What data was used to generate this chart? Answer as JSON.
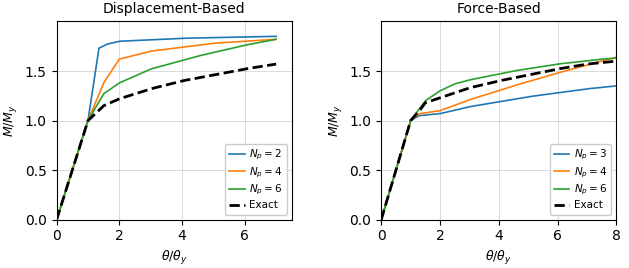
{
  "title_left": "Displacement-Based",
  "title_right": "Force-Based",
  "xlabel": "$\\theta/\\theta_y$",
  "ylabel": "$M/M_y$",
  "xlim_left": [
    0,
    7.5
  ],
  "xlim_right": [
    0,
    8.0
  ],
  "ylim": [
    0.0,
    2.0
  ],
  "yticks": [
    0.0,
    0.5,
    1.0,
    1.5
  ],
  "xticks_left": [
    0,
    2,
    4,
    6
  ],
  "xticks_right": [
    0,
    2,
    4,
    6,
    8
  ],
  "color_blue": "#1f77b4",
  "color_orange": "#ff7f0e",
  "color_green": "#2ca02c",
  "color_black": "#000000",
  "db_np2_pts": [
    [
      0,
      0
    ],
    [
      1.0,
      1.0
    ],
    [
      1.35,
      1.73
    ],
    [
      1.6,
      1.77
    ],
    [
      2.0,
      1.8
    ],
    [
      4.0,
      1.83
    ],
    [
      7.0,
      1.85
    ]
  ],
  "db_np4_pts": [
    [
      0,
      0
    ],
    [
      1.0,
      1.0
    ],
    [
      1.5,
      1.38
    ],
    [
      2.0,
      1.62
    ],
    [
      3.0,
      1.7
    ],
    [
      5.0,
      1.78
    ],
    [
      6.5,
      1.81
    ],
    [
      7.0,
      1.82
    ]
  ],
  "db_np6_pts": [
    [
      0,
      0
    ],
    [
      1.0,
      1.0
    ],
    [
      1.5,
      1.27
    ],
    [
      2.0,
      1.38
    ],
    [
      3.0,
      1.52
    ],
    [
      4.5,
      1.65
    ],
    [
      6.0,
      1.76
    ],
    [
      7.0,
      1.82
    ]
  ],
  "exact_db_pts": [
    [
      0,
      0
    ],
    [
      1.0,
      1.0
    ],
    [
      1.5,
      1.15
    ],
    [
      2.0,
      1.22
    ],
    [
      3.0,
      1.32
    ],
    [
      4.0,
      1.4
    ],
    [
      5.0,
      1.46
    ],
    [
      6.0,
      1.52
    ],
    [
      7.0,
      1.57
    ]
  ],
  "fb_np3_pts": [
    [
      0,
      0
    ],
    [
      1.0,
      1.0
    ],
    [
      1.3,
      1.05
    ],
    [
      2.0,
      1.07
    ],
    [
      3.0,
      1.14
    ],
    [
      5.0,
      1.24
    ],
    [
      7.0,
      1.32
    ],
    [
      8.0,
      1.35
    ]
  ],
  "fb_np4_pts": [
    [
      0,
      0
    ],
    [
      1.0,
      1.0
    ],
    [
      1.3,
      1.07
    ],
    [
      2.0,
      1.1
    ],
    [
      3.0,
      1.21
    ],
    [
      4.5,
      1.35
    ],
    [
      6.0,
      1.48
    ],
    [
      7.5,
      1.6
    ],
    [
      8.0,
      1.64
    ]
  ],
  "fb_np6_pts": [
    [
      0,
      0
    ],
    [
      1.0,
      1.0
    ],
    [
      1.5,
      1.2
    ],
    [
      2.0,
      1.3
    ],
    [
      2.5,
      1.37
    ],
    [
      3.0,
      1.41
    ],
    [
      4.5,
      1.5
    ],
    [
      6.0,
      1.57
    ],
    [
      7.5,
      1.62
    ],
    [
      8.0,
      1.63
    ]
  ],
  "exact_fb_pts": [
    [
      0,
      0
    ],
    [
      0.5,
      0.5
    ],
    [
      1.0,
      1.0
    ],
    [
      1.3,
      1.1
    ],
    [
      1.5,
      1.18
    ],
    [
      2.0,
      1.23
    ],
    [
      3.0,
      1.33
    ],
    [
      4.0,
      1.4
    ],
    [
      5.0,
      1.46
    ],
    [
      6.0,
      1.52
    ],
    [
      7.0,
      1.57
    ],
    [
      8.0,
      1.6
    ]
  ]
}
